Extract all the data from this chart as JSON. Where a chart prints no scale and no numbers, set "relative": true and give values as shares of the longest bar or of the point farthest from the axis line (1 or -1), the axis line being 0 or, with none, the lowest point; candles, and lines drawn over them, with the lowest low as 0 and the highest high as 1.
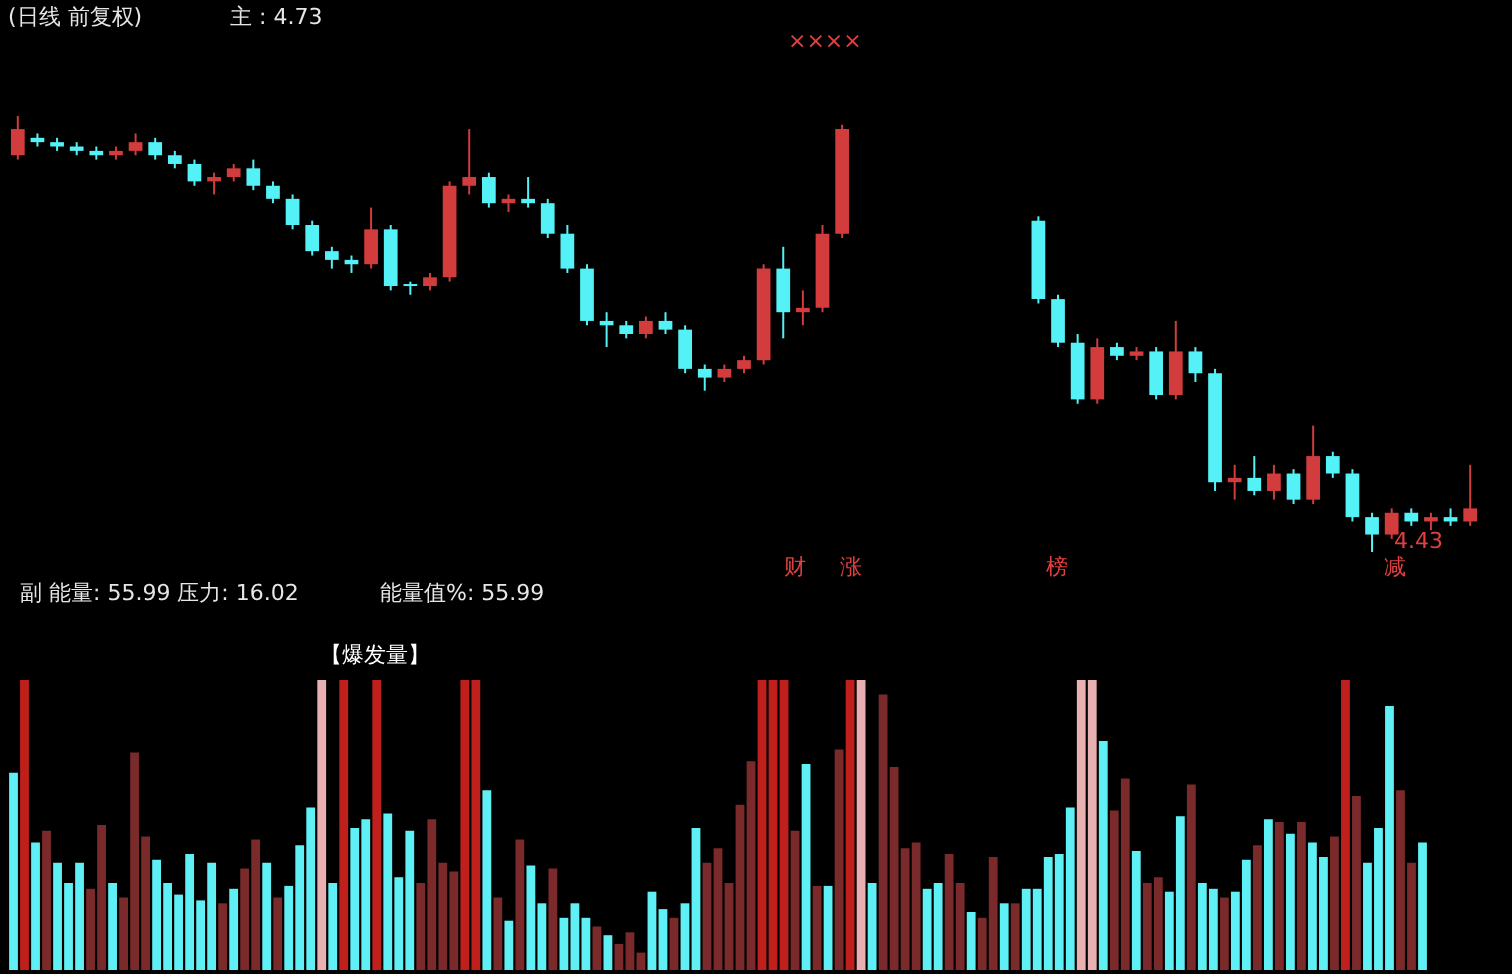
{
  "chart_data": [
    {
      "type": "candlestick",
      "title": "(日线 前复权)",
      "subtitle": "主 : 4.73",
      "relative": true,
      "categories": [
        null,
        null,
        null,
        null,
        null,
        null,
        null,
        null,
        null,
        null,
        null,
        null,
        null,
        null,
        null,
        null,
        null,
        null,
        null,
        null,
        null,
        null,
        null,
        null,
        null,
        null,
        null,
        null,
        null,
        null,
        null,
        null,
        null,
        null,
        null,
        null,
        null,
        null,
        null,
        null,
        null,
        null,
        null,
        null,
        null,
        null,
        null,
        null,
        null,
        null,
        null,
        null,
        null,
        null,
        null,
        null,
        null,
        null,
        null,
        null,
        null,
        null,
        null,
        null,
        null,
        null,
        null,
        null,
        null,
        null,
        null,
        null,
        null,
        null,
        null
      ],
      "ohlc": [
        [
          0.91,
          1.0,
          0.9,
          0.97
        ],
        [
          0.95,
          0.96,
          0.93,
          0.94
        ],
        [
          0.94,
          0.95,
          0.92,
          0.93
        ],
        [
          0.93,
          0.94,
          0.91,
          0.92
        ],
        [
          0.92,
          0.93,
          0.9,
          0.91
        ],
        [
          0.91,
          0.93,
          0.9,
          0.92
        ],
        [
          0.92,
          0.96,
          0.91,
          0.94
        ],
        [
          0.94,
          0.95,
          0.9,
          0.91
        ],
        [
          0.91,
          0.92,
          0.88,
          0.89
        ],
        [
          0.89,
          0.9,
          0.84,
          0.85
        ],
        [
          0.85,
          0.87,
          0.82,
          0.86
        ],
        [
          0.86,
          0.89,
          0.85,
          0.88
        ],
        [
          0.88,
          0.9,
          0.83,
          0.84
        ],
        [
          0.84,
          0.85,
          0.8,
          0.81
        ],
        [
          0.81,
          0.82,
          0.74,
          0.75
        ],
        [
          0.75,
          0.76,
          0.68,
          0.69
        ],
        [
          0.69,
          0.7,
          0.65,
          0.67
        ],
        [
          0.67,
          0.68,
          0.64,
          0.66
        ],
        [
          0.66,
          0.79,
          0.65,
          0.74
        ],
        [
          0.74,
          0.75,
          0.6,
          0.61
        ],
        [
          0.61,
          0.62,
          0.59,
          0.61
        ],
        [
          0.61,
          0.64,
          0.6,
          0.63
        ],
        [
          0.63,
          0.85,
          0.62,
          0.84
        ],
        [
          0.84,
          0.97,
          0.82,
          0.86
        ],
        [
          0.86,
          0.87,
          0.79,
          0.8
        ],
        [
          0.8,
          0.82,
          0.78,
          0.81
        ],
        [
          0.81,
          0.86,
          0.79,
          0.8
        ],
        [
          0.8,
          0.81,
          0.72,
          0.73
        ],
        [
          0.73,
          0.75,
          0.64,
          0.65
        ],
        [
          0.65,
          0.66,
          0.52,
          0.53
        ],
        [
          0.53,
          0.55,
          0.47,
          0.52
        ],
        [
          0.52,
          0.53,
          0.49,
          0.5
        ],
        [
          0.5,
          0.54,
          0.49,
          0.53
        ],
        [
          0.53,
          0.55,
          0.5,
          0.51
        ],
        [
          0.51,
          0.52,
          0.41,
          0.42
        ],
        [
          0.42,
          0.43,
          0.37,
          0.4
        ],
        [
          0.4,
          0.43,
          0.39,
          0.42
        ],
        [
          0.42,
          0.45,
          0.41,
          0.44
        ],
        [
          0.44,
          0.66,
          0.43,
          0.65
        ],
        [
          0.65,
          0.7,
          0.49,
          0.55
        ],
        [
          0.55,
          0.6,
          0.52,
          0.56
        ],
        [
          0.56,
          0.75,
          0.55,
          0.73
        ],
        [
          0.73,
          0.98,
          0.72,
          0.97
        ],
        null,
        null,
        null,
        null,
        null,
        null,
        null,
        null,
        null,
        [
          0.76,
          0.77,
          0.57,
          0.58
        ],
        [
          0.58,
          0.59,
          0.47,
          0.48
        ],
        [
          0.48,
          0.5,
          0.34,
          0.35
        ],
        [
          0.35,
          0.49,
          0.34,
          0.47
        ],
        [
          0.47,
          0.48,
          0.44,
          0.45
        ],
        [
          0.45,
          0.47,
          0.44,
          0.46
        ],
        [
          0.46,
          0.47,
          0.35,
          0.36
        ],
        [
          0.36,
          0.53,
          0.35,
          0.46
        ],
        [
          0.46,
          0.47,
          0.39,
          0.41
        ],
        [
          0.41,
          0.42,
          0.14,
          0.16
        ],
        [
          0.16,
          0.2,
          0.12,
          0.17
        ],
        [
          0.17,
          0.22,
          0.13,
          0.14
        ],
        [
          0.14,
          0.2,
          0.12,
          0.18
        ],
        [
          0.18,
          0.19,
          0.11,
          0.12
        ],
        [
          0.12,
          0.29,
          0.11,
          0.22
        ],
        [
          0.22,
          0.23,
          0.17,
          0.18
        ],
        [
          0.18,
          0.19,
          0.07,
          0.08
        ],
        [
          0.08,
          0.09,
          0.0,
          0.04
        ],
        [
          0.04,
          0.1,
          0.03,
          0.09
        ],
        [
          0.09,
          0.1,
          0.06,
          0.07
        ],
        [
          0.07,
          0.09,
          0.05,
          0.08
        ],
        [
          0.08,
          0.1,
          0.06,
          0.07
        ],
        [
          0.07,
          0.2,
          0.06,
          0.1
        ]
      ],
      "colors": [
        "#d23c3c",
        "#54f2f7",
        "#54f2f7",
        "#54f2f7",
        "#54f2f7",
        "#d23c3c",
        "#d23c3c",
        "#54f2f7",
        "#54f2f7",
        "#54f2f7",
        "#d23c3c",
        "#d23c3c",
        "#54f2f7",
        "#54f2f7",
        "#54f2f7",
        "#54f2f7",
        "#54f2f7",
        "#54f2f7",
        "#d23c3c",
        "#54f2f7",
        "#54f2f7",
        "#d23c3c",
        "#d23c3c",
        "#d23c3c",
        "#54f2f7",
        "#d23c3c",
        "#54f2f7",
        "#54f2f7",
        "#54f2f7",
        "#54f2f7",
        "#54f2f7",
        "#54f2f7",
        "#d23c3c",
        "#54f2f7",
        "#54f2f7",
        "#54f2f7",
        "#d23c3c",
        "#d23c3c",
        "#d23c3c",
        "#54f2f7",
        "#d23c3c",
        "#d23c3c",
        "#d23c3c",
        null,
        null,
        null,
        null,
        null,
        null,
        null,
        null,
        null,
        "#54f2f7",
        "#54f2f7",
        "#54f2f7",
        "#d23c3c",
        "#54f2f7",
        "#d23c3c",
        "#54f2f7",
        "#d23c3c",
        "#54f2f7",
        "#54f2f7",
        "#d23c3c",
        "#54f2f7",
        "#d23c3c",
        "#54f2f7",
        "#d23c3c",
        "#54f2f7",
        "#54f2f7",
        "#54f2f7",
        "#d23c3c",
        "#54f2f7",
        "#d23c3c",
        "#54f2f7",
        "#d23c3c"
      ],
      "annotations": [
        "4.43",
        "××××",
        "财",
        "涨",
        "榜",
        "减"
      ]
    },
    {
      "type": "bar",
      "title": "副 能量: 55.99 压力: 16.02",
      "subtitle": "能量值%: 55.99",
      "relative": true,
      "categories": [
        null,
        null,
        null,
        null,
        null,
        null,
        null,
        null,
        null,
        null,
        null,
        null,
        null,
        null,
        null,
        null,
        null,
        null,
        null,
        null,
        null,
        null,
        null,
        null,
        null,
        null,
        null,
        null,
        null,
        null,
        null,
        null,
        null,
        null,
        null,
        null,
        null,
        null,
        null,
        null,
        null,
        null,
        null,
        null,
        null,
        null,
        null,
        null,
        null,
        null,
        null,
        null,
        null,
        null,
        null,
        null,
        null,
        null,
        null,
        null,
        null,
        null,
        null,
        null,
        null,
        null,
        null,
        null,
        null,
        null,
        null,
        null,
        null,
        null,
        null,
        null,
        null,
        null,
        null,
        null,
        null,
        null,
        null,
        null,
        null,
        null,
        null,
        null,
        null,
        null,
        null,
        null,
        null,
        null,
        null,
        null,
        null,
        null,
        null,
        null,
        null,
        null,
        null,
        null,
        null,
        null,
        null,
        null,
        null,
        null,
        null,
        null,
        null,
        null,
        null,
        null,
        null,
        null,
        null,
        null,
        null,
        null,
        null,
        null,
        null,
        null,
        null,
        null,
        null
      ],
      "values": [
        0.68,
        1,
        0.44,
        0.48,
        0.37,
        0.3,
        0.37,
        0.28,
        0.5,
        0.3,
        0.25,
        0.75,
        0.46,
        0.38,
        0.3,
        0.26,
        0.4,
        0.24,
        0.37,
        0.23,
        0.28,
        0.35,
        0.45,
        0.37,
        0.25,
        0.29,
        0.43,
        0.56,
        1,
        0.3,
        1,
        0.49,
        0.52,
        1,
        0.54,
        0.32,
        0.48,
        0.3,
        0.52,
        0.37,
        0.34,
        1,
        1,
        0.62,
        0.25,
        0.17,
        0.45,
        0.36,
        0.23,
        0.35,
        0.18,
        0.23,
        0.18,
        0.15,
        0.12,
        0.09,
        0.13,
        0.06,
        0.27,
        0.21,
        0.18,
        0.23,
        0.49,
        0.37,
        0.42,
        0.3,
        0.57,
        0.72,
        1,
        1,
        1,
        0.48,
        0.71,
        0.29,
        0.29,
        0.76,
        1,
        1,
        0.3,
        0.95,
        0.7,
        0.42,
        0.44,
        0.28,
        0.3,
        0.4,
        0.3,
        0.2,
        0.18,
        0.39,
        0.23,
        0.23,
        0.28,
        0.28,
        0.39,
        0.4,
        0.56,
        1,
        1,
        0.79,
        0.55,
        0.66,
        0.41,
        0.3,
        0.32,
        0.27,
        0.53,
        0.64,
        0.3,
        0.28,
        0.25,
        0.27,
        0.38,
        0.43,
        0.52,
        0.51,
        0.47,
        0.51,
        0.44,
        0.39,
        0.46,
        1,
        0.6,
        0.37,
        0.49,
        0.91,
        0.62,
        0.37,
        0.44
      ],
      "colors": [
        "#5ff0f5",
        "#c0201c",
        "#5ff0f5",
        "#7a2a2a",
        "#5ff0f5",
        "#5ff0f5",
        "#5ff0f5",
        "#7a2a2a",
        "#7a2a2a",
        "#5ff0f5",
        "#7a2a2a",
        "#7a2a2a",
        "#7a2a2a",
        "#5ff0f5",
        "#5ff0f5",
        "#5ff0f5",
        "#5ff0f5",
        "#5ff0f5",
        "#5ff0f5",
        "#7a2a2a",
        "#5ff0f5",
        "#7a2a2a",
        "#7a2a2a",
        "#5ff0f5",
        "#7a2a2a",
        "#5ff0f5",
        "#5ff0f5",
        "#5ff0f5",
        "#e8b0b0",
        "#5ff0f5",
        "#c0201c",
        "#5ff0f5",
        "#5ff0f5",
        "#c0201c",
        "#5ff0f5",
        "#5ff0f5",
        "#5ff0f5",
        "#7a2a2a",
        "#7a2a2a",
        "#7a2a2a",
        "#7a2a2a",
        "#c0201c",
        "#c0201c",
        "#5ff0f5",
        "#7a2a2a",
        "#5ff0f5",
        "#7a2a2a",
        "#5ff0f5",
        "#5ff0f5",
        "#7a2a2a",
        "#5ff0f5",
        "#5ff0f5",
        "#5ff0f5",
        "#7a2a2a",
        "#5ff0f5",
        "#7a2a2a",
        "#7a2a2a",
        "#7a2a2a",
        "#5ff0f5",
        "#5ff0f5",
        "#7a2a2a",
        "#5ff0f5",
        "#5ff0f5",
        "#7a2a2a",
        "#7a2a2a",
        "#7a2a2a",
        "#7a2a2a",
        "#7a2a2a",
        "#c0201c",
        "#c0201c",
        "#c0201c",
        "#7a2a2a",
        "#5ff0f5",
        "#7a2a2a",
        "#5ff0f5",
        "#7a2a2a",
        "#c0201c",
        "#e8b0b0",
        "#5ff0f5",
        "#7a2a2a",
        "#7a2a2a",
        "#7a2a2a",
        "#7a2a2a",
        "#5ff0f5",
        "#5ff0f5",
        "#7a2a2a",
        "#7a2a2a",
        "#5ff0f5",
        "#7a2a2a",
        "#7a2a2a",
        "#5ff0f5",
        "#7a2a2a",
        "#5ff0f5",
        "#5ff0f5",
        "#5ff0f5",
        "#5ff0f5",
        "#5ff0f5",
        "#e8b0b0",
        "#e8b0b0",
        "#5ff0f5",
        "#7a2a2a",
        "#7a2a2a",
        "#5ff0f5",
        "#7a2a2a",
        "#7a2a2a",
        "#5ff0f5",
        "#5ff0f5",
        "#7a2a2a",
        "#5ff0f5",
        "#5ff0f5",
        "#7a2a2a",
        "#5ff0f5",
        "#5ff0f5",
        "#7a2a2a",
        "#5ff0f5",
        "#7a2a2a",
        "#5ff0f5",
        "#7a2a2a",
        "#5ff0f5",
        "#5ff0f5",
        "#7a2a2a",
        "#c0201c",
        "#7a2a2a",
        "#5ff0f5",
        "#5ff0f5",
        "#5ff0f5",
        "#7a2a2a",
        "#7a2a2a",
        "#5ff0f5"
      ],
      "annotations": [
        "【爆发量】"
      ]
    }
  ]
}
